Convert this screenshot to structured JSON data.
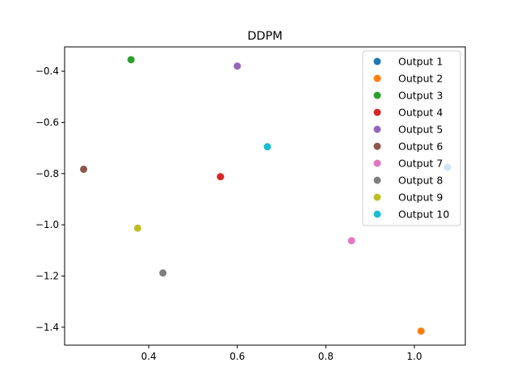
{
  "chart_data": {
    "type": "scatter",
    "title": "DDPM",
    "xlabel": "",
    "ylabel": "",
    "xlim": [
      0.21,
      1.115
    ],
    "ylim": [
      -1.47,
      -0.305
    ],
    "xticks": [
      0.4,
      0.6,
      0.8,
      1.0
    ],
    "xtick_labels": [
      "0.4",
      "0.6",
      "0.8",
      "1.0"
    ],
    "yticks": [
      -0.4,
      -0.6,
      -0.8,
      -1.0,
      -1.2,
      -1.4
    ],
    "ytick_labels": [
      "−0.4",
      "−0.6",
      "−0.8",
      "−1.0",
      "−1.2",
      "−1.4"
    ],
    "grid": false,
    "legend_position": "top-right",
    "series": [
      {
        "name": "Output 1",
        "color": "#1f77b4",
        "x": [
          1.075
        ],
        "y": [
          -0.775
        ]
      },
      {
        "name": "Output 2",
        "color": "#ff7f0e",
        "x": [
          1.015
        ],
        "y": [
          -1.415
        ]
      },
      {
        "name": "Output 3",
        "color": "#2ca02c",
        "x": [
          0.36
        ],
        "y": [
          -0.355
        ]
      },
      {
        "name": "Output 4",
        "color": "#d62728",
        "x": [
          0.562
        ],
        "y": [
          -0.812
        ]
      },
      {
        "name": "Output 5",
        "color": "#9467bd",
        "x": [
          0.6
        ],
        "y": [
          -0.38
        ]
      },
      {
        "name": "Output 6",
        "color": "#8c564b",
        "x": [
          0.253
        ],
        "y": [
          -0.783
        ]
      },
      {
        "name": "Output 7",
        "color": "#e377c2",
        "x": [
          0.858
        ],
        "y": [
          -1.062
        ]
      },
      {
        "name": "Output 8",
        "color": "#7f7f7f",
        "x": [
          0.432
        ],
        "y": [
          -1.188
        ]
      },
      {
        "name": "Output 9",
        "color": "#bcbd22",
        "x": [
          0.375
        ],
        "y": [
          -1.013
        ]
      },
      {
        "name": "Output 10",
        "color": "#17becf",
        "x": [
          0.668
        ],
        "y": [
          -0.695
        ]
      }
    ]
  }
}
